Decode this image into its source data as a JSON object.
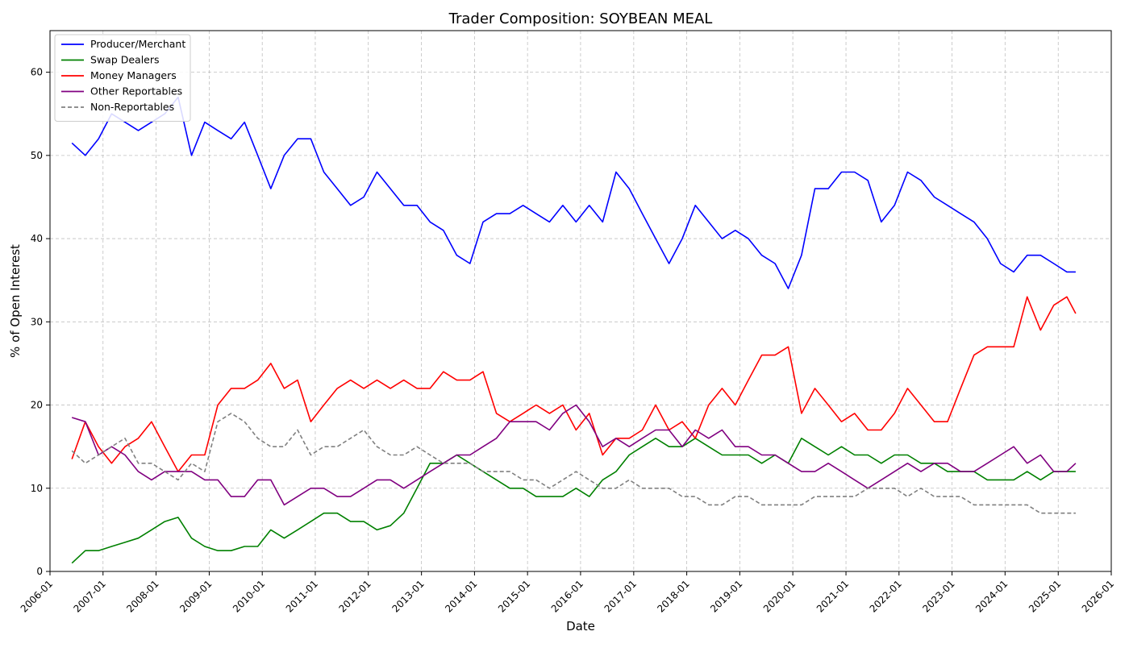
{
  "chart_data": {
    "type": "line",
    "title": "Trader Composition: SOYBEAN MEAL",
    "xlabel": "Date",
    "ylabel": "% of Open Interest",
    "x_type": "date",
    "xlim": [
      "2006-01-01",
      "2026-01-01"
    ],
    "ylim": [
      0,
      65
    ],
    "grid": true,
    "legend_position": "top-left",
    "x_ticks": [
      "2006-01",
      "2007-01",
      "2008-01",
      "2009-01",
      "2010-01",
      "2011-01",
      "2012-01",
      "2013-01",
      "2014-01",
      "2015-01",
      "2016-01",
      "2017-01",
      "2018-01",
      "2019-01",
      "2020-01",
      "2021-01",
      "2022-01",
      "2023-01",
      "2024-01",
      "2025-01",
      "2026-01"
    ],
    "y_ticks": [
      0,
      10,
      20,
      30,
      40,
      50,
      60
    ],
    "x": [
      "2006-06",
      "2006-09",
      "2006-12",
      "2007-03",
      "2007-06",
      "2007-09",
      "2007-12",
      "2008-03",
      "2008-06",
      "2008-09",
      "2008-12",
      "2009-03",
      "2009-06",
      "2009-09",
      "2009-12",
      "2010-03",
      "2010-06",
      "2010-09",
      "2010-12",
      "2011-03",
      "2011-06",
      "2011-09",
      "2011-12",
      "2012-03",
      "2012-06",
      "2012-09",
      "2012-12",
      "2013-03",
      "2013-06",
      "2013-09",
      "2013-12",
      "2014-03",
      "2014-06",
      "2014-09",
      "2014-12",
      "2015-03",
      "2015-06",
      "2015-09",
      "2015-12",
      "2016-03",
      "2016-06",
      "2016-09",
      "2016-12",
      "2017-03",
      "2017-06",
      "2017-09",
      "2017-12",
      "2018-03",
      "2018-06",
      "2018-09",
      "2018-12",
      "2019-03",
      "2019-06",
      "2019-09",
      "2019-12",
      "2020-03",
      "2020-06",
      "2020-09",
      "2020-12",
      "2021-03",
      "2021-06",
      "2021-09",
      "2021-12",
      "2022-03",
      "2022-06",
      "2022-09",
      "2022-12",
      "2023-03",
      "2023-06",
      "2023-09",
      "2023-12",
      "2024-03",
      "2024-06",
      "2024-09",
      "2024-12",
      "2025-03",
      "2025-05"
    ],
    "series": [
      {
        "name": "Producer/Merchant",
        "color": "#0000ff",
        "dash": "solid",
        "values": [
          51.5,
          50,
          52,
          55,
          54,
          53,
          54,
          55,
          57,
          50,
          54,
          53,
          52,
          54,
          50,
          46,
          50,
          52,
          52,
          48,
          46,
          44,
          45,
          48,
          46,
          44,
          44,
          42,
          41,
          38,
          37,
          42,
          43,
          43,
          44,
          43,
          42,
          44,
          42,
          44,
          42,
          48,
          46,
          43,
          40,
          37,
          40,
          44,
          42,
          40,
          41,
          40,
          38,
          37,
          34,
          38,
          46,
          46,
          48,
          48,
          47,
          42,
          44,
          48,
          47,
          45,
          44,
          43,
          42,
          40,
          37,
          36,
          38,
          38,
          37,
          36,
          36
        ]
      },
      {
        "name": "Swap Dealers",
        "color": "#008000",
        "dash": "solid",
        "values": [
          1,
          2.5,
          2.5,
          3,
          3.5,
          4,
          5,
          6,
          6.5,
          4,
          3,
          2.5,
          2.5,
          3,
          3,
          5,
          4,
          5,
          6,
          7,
          7,
          6,
          6,
          5,
          5.5,
          7,
          10,
          13,
          13,
          14,
          13,
          12,
          11,
          10,
          10,
          9,
          9,
          9,
          10,
          9,
          11,
          12,
          14,
          15,
          16,
          15,
          15,
          16,
          15,
          14,
          14,
          14,
          13,
          14,
          13,
          16,
          15,
          14,
          15,
          14,
          14,
          13,
          14,
          14,
          13,
          13,
          12,
          12,
          12,
          11,
          11,
          11,
          12,
          11,
          12,
          12,
          12
        ]
      },
      {
        "name": "Money Managers",
        "color": "#ff0000",
        "dash": "solid",
        "values": [
          13.5,
          18,
          15,
          13,
          15,
          16,
          18,
          15,
          12,
          14,
          14,
          20,
          22,
          22,
          23,
          25,
          22,
          23,
          18,
          20,
          22,
          23,
          22,
          23,
          22,
          23,
          22,
          22,
          24,
          23,
          23,
          24,
          19,
          18,
          19,
          20,
          19,
          20,
          17,
          19,
          14,
          16,
          16,
          17,
          20,
          17,
          18,
          16,
          20,
          22,
          20,
          23,
          26,
          26,
          27,
          19,
          22,
          20,
          18,
          19,
          17,
          17,
          19,
          22,
          20,
          18,
          18,
          22,
          26,
          27,
          27,
          27,
          33,
          29,
          32,
          33,
          31
        ]
      },
      {
        "name": "Other Reportables",
        "color": "#800080",
        "dash": "solid",
        "values": [
          18.5,
          18,
          14,
          15,
          14,
          12,
          11,
          12,
          12,
          12,
          11,
          11,
          9,
          9,
          11,
          11,
          8,
          9,
          10,
          10,
          9,
          9,
          10,
          11,
          11,
          10,
          11,
          12,
          13,
          14,
          14,
          15,
          16,
          18,
          18,
          18,
          17,
          19,
          20,
          18,
          15,
          16,
          15,
          16,
          17,
          17,
          15,
          17,
          16,
          17,
          15,
          15,
          14,
          14,
          13,
          12,
          12,
          13,
          12,
          11,
          10,
          11,
          12,
          13,
          12,
          13,
          13,
          12,
          12,
          13,
          14,
          15,
          13,
          14,
          12,
          12,
          13
        ]
      },
      {
        "name": "Non-Reportables",
        "color": "#808080",
        "dash": "dashed",
        "values": [
          14.5,
          13,
          14,
          15,
          16,
          13,
          13,
          12,
          11,
          13,
          12,
          18,
          19,
          18,
          16,
          15,
          15,
          17,
          14,
          15,
          15,
          16,
          17,
          15,
          14,
          14,
          15,
          14,
          13,
          13,
          13,
          12,
          12,
          12,
          11,
          11,
          10,
          11,
          12,
          11,
          10,
          10,
          11,
          10,
          10,
          10,
          9,
          9,
          8,
          8,
          9,
          9,
          8,
          8,
          8,
          8,
          9,
          9,
          9,
          9,
          10,
          10,
          10,
          9,
          10,
          9,
          9,
          9,
          8,
          8,
          8,
          8,
          8,
          7,
          7,
          7,
          7
        ]
      }
    ]
  }
}
